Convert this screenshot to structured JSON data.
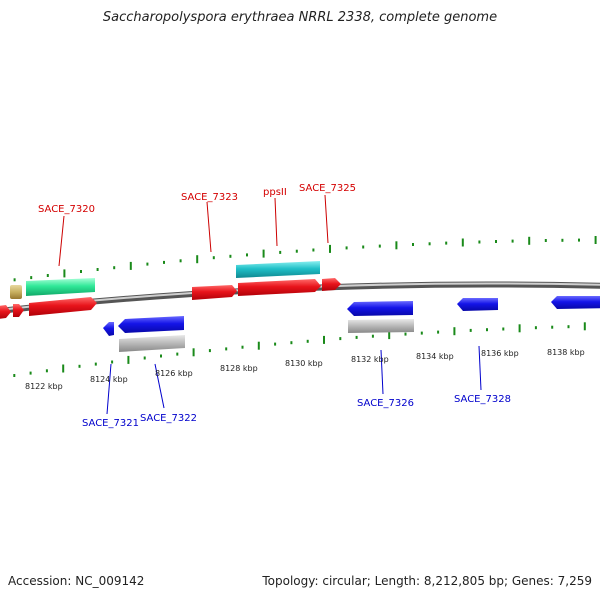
{
  "title": "Saccharopolyspora erythraea NRRL 2338, complete genome",
  "footer": {
    "accession": "Accession: NC_009142",
    "summary": "Topology: circular; Length: 8,212,805 bp; Genes: 7,259"
  },
  "colors": {
    "forward_cds": "#e8141b",
    "reverse_cds": "#1010e0",
    "rna_fwd": "#20c0c8",
    "rna_green": "#30e898",
    "pseudo_gray": "#b8b8b8",
    "misc_tan": "#c8b060",
    "backbone": "#8a8a8a",
    "tick_fwd": "#1a8a1a",
    "tick_rev": "#1a8a1a",
    "label_fwd": "#d40000",
    "label_rev": "#0000cc"
  },
  "tick_labels": [
    "8122 kbp",
    "8124 kbp",
    "8126 kbp",
    "8128 kbp",
    "8130 kbp",
    "8132 kbp",
    "8134 kbp",
    "8136 kbp",
    "8138 kbp"
  ],
  "gene_labels_forward": [
    "SACE_7320",
    "SACE_7323",
    "ppsII",
    "SACE_7325"
  ],
  "gene_labels_reverse": [
    "SACE_7321",
    "SACE_7322",
    "SACE_7326",
    "SACE_7328"
  ]
}
